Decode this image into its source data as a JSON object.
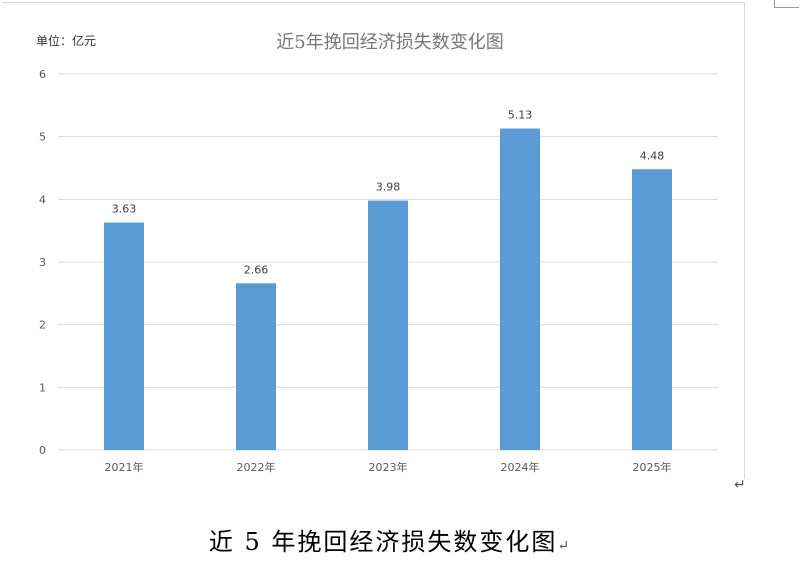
{
  "chart_data": {
    "type": "bar",
    "title": "近5年挽回经济损失数变化图",
    "unit_label": "单位：亿元",
    "categories": [
      "2021年",
      "2022年",
      "2023年",
      "2024年",
      "2025年"
    ],
    "values": [
      3.63,
      2.66,
      3.98,
      5.13,
      4.48
    ],
    "value_labels": [
      "3.63",
      "2.66",
      "3.98",
      "5.13",
      "4.48"
    ],
    "y_ticks": [
      "0",
      "1",
      "2",
      "3",
      "4",
      "5",
      "6"
    ],
    "ylim": [
      0,
      6
    ],
    "grid": true,
    "legend": "none",
    "bar_color": "#5b9bd5",
    "gridline_color": "#d9d9d9",
    "axis_text_color": "#595959"
  },
  "caption": "近 5 年挽回经济损失数变化图",
  "paragraph_mark": "↵"
}
